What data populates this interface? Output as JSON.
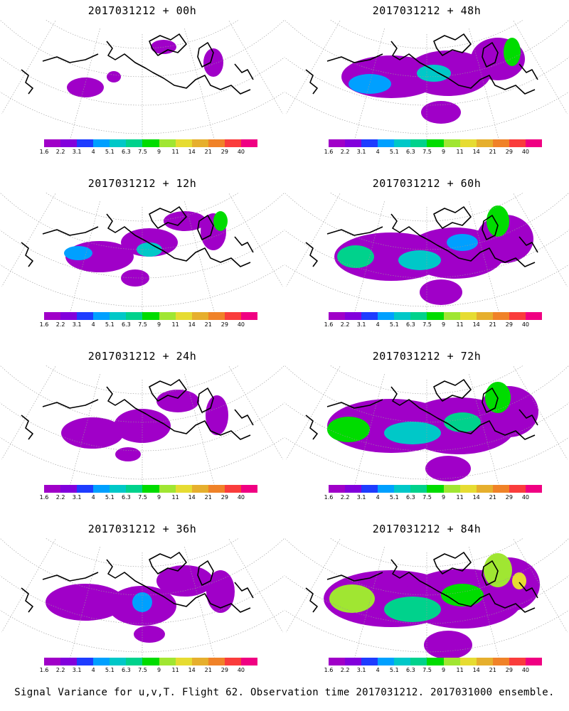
{
  "colorbar": {
    "colors": [
      "#a000c8",
      "#8200dc",
      "#1e3cff",
      "#00a0ff",
      "#00c8c8",
      "#00d28c",
      "#00dc00",
      "#a0e632",
      "#e6dc32",
      "#e6af2d",
      "#f08228",
      "#fa3c3c",
      "#f00082"
    ],
    "labels": [
      "1.6",
      "2.2",
      "3.1",
      "4",
      "5.1",
      "6.3",
      "7.5",
      "9",
      "11",
      "14",
      "21",
      "29",
      "40"
    ]
  },
  "panels": [
    {
      "title": "2017031212 + 00h",
      "level": 0
    },
    {
      "title": "2017031212 + 48h",
      "level": 4
    },
    {
      "title": "2017031212 + 12h",
      "level": 1
    },
    {
      "title": "2017031212 + 60h",
      "level": 5
    },
    {
      "title": "2017031212 + 24h",
      "level": 2
    },
    {
      "title": "2017031212 + 72h",
      "level": 6
    },
    {
      "title": "2017031212 + 36h",
      "level": 3
    },
    {
      "title": "2017031212 + 84h",
      "level": 7
    }
  ],
  "caption": "Signal Variance for u,v,T. Flight 62. Observation time 2017031212. 2017031000 ensemble."
}
